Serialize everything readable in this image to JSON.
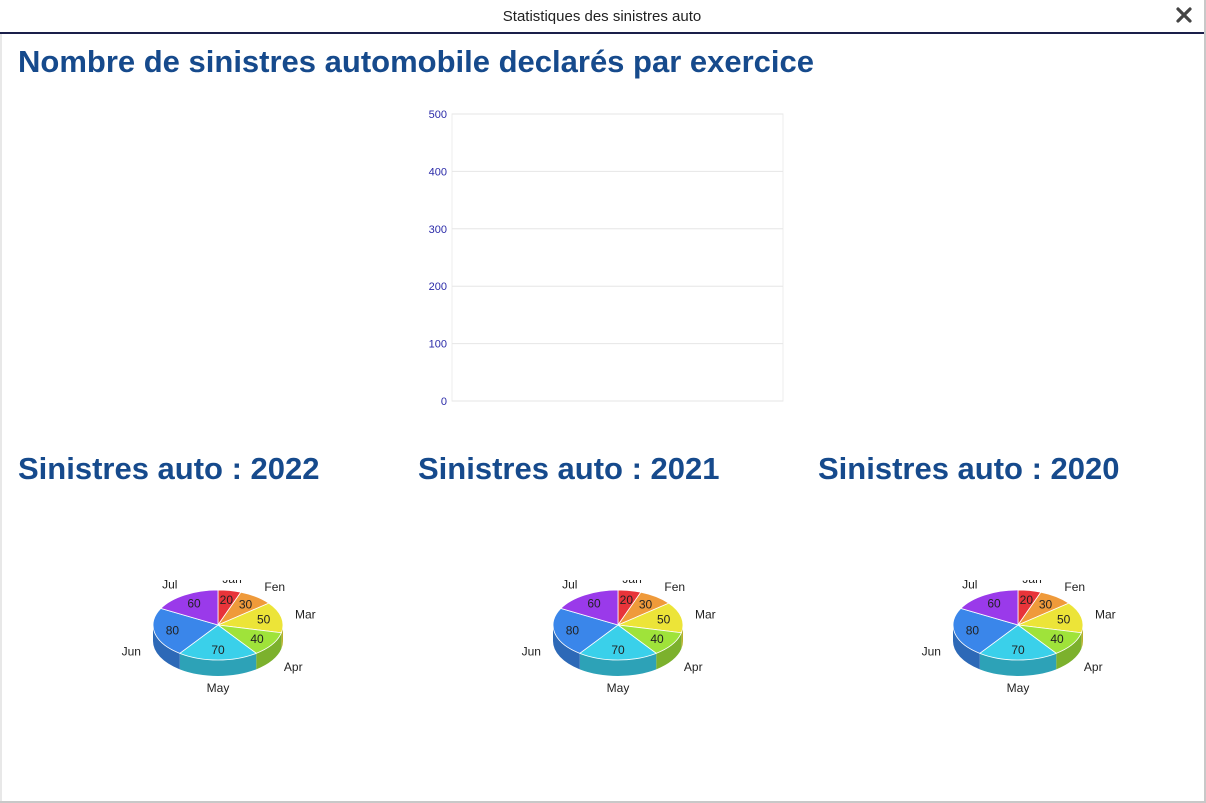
{
  "window": {
    "title": "Statistiques des sinistres auto",
    "close_icon": "close-icon"
  },
  "main": {
    "title": "Nombre de sinistres automobile declarés par exercice"
  },
  "colors": {
    "heading": "#164a8c",
    "axis_text": "#2a2aa8",
    "grid": "#e6e6e6"
  },
  "chart_data": [
    {
      "type": "bar",
      "title": "",
      "categories": [],
      "values": [],
      "ylim": [
        0,
        500
      ],
      "yticks": [
        0,
        100,
        200,
        300,
        400,
        500
      ],
      "grid": true
    },
    {
      "type": "pie",
      "title": "Sinistres auto : 2022",
      "labels": [
        "Jan",
        "Fen",
        "Mar",
        "Apr",
        "May",
        "Jun",
        "Jul"
      ],
      "values": [
        20,
        30,
        50,
        40,
        70,
        80,
        60
      ],
      "colors": [
        "#e8343a",
        "#ef9a3a",
        "#ece438",
        "#9fe33a",
        "#3ad0ea",
        "#3a86ea",
        "#9a3aea"
      ]
    },
    {
      "type": "pie",
      "title": "Sinistres auto : 2021",
      "labels": [
        "Jan",
        "Fen",
        "Mar",
        "Apr",
        "May",
        "Jun",
        "Jul"
      ],
      "values": [
        20,
        30,
        50,
        40,
        70,
        80,
        60
      ],
      "colors": [
        "#e8343a",
        "#ef9a3a",
        "#ece438",
        "#9fe33a",
        "#3ad0ea",
        "#3a86ea",
        "#9a3aea"
      ]
    },
    {
      "type": "pie",
      "title": "Sinistres auto : 2020",
      "labels": [
        "Jan",
        "Fen",
        "Mar",
        "Apr",
        "May",
        "Jun",
        "Jul"
      ],
      "values": [
        20,
        30,
        50,
        40,
        70,
        80,
        60
      ],
      "colors": [
        "#e8343a",
        "#ef9a3a",
        "#ece438",
        "#9fe33a",
        "#3ad0ea",
        "#3a86ea",
        "#9a3aea"
      ]
    }
  ]
}
